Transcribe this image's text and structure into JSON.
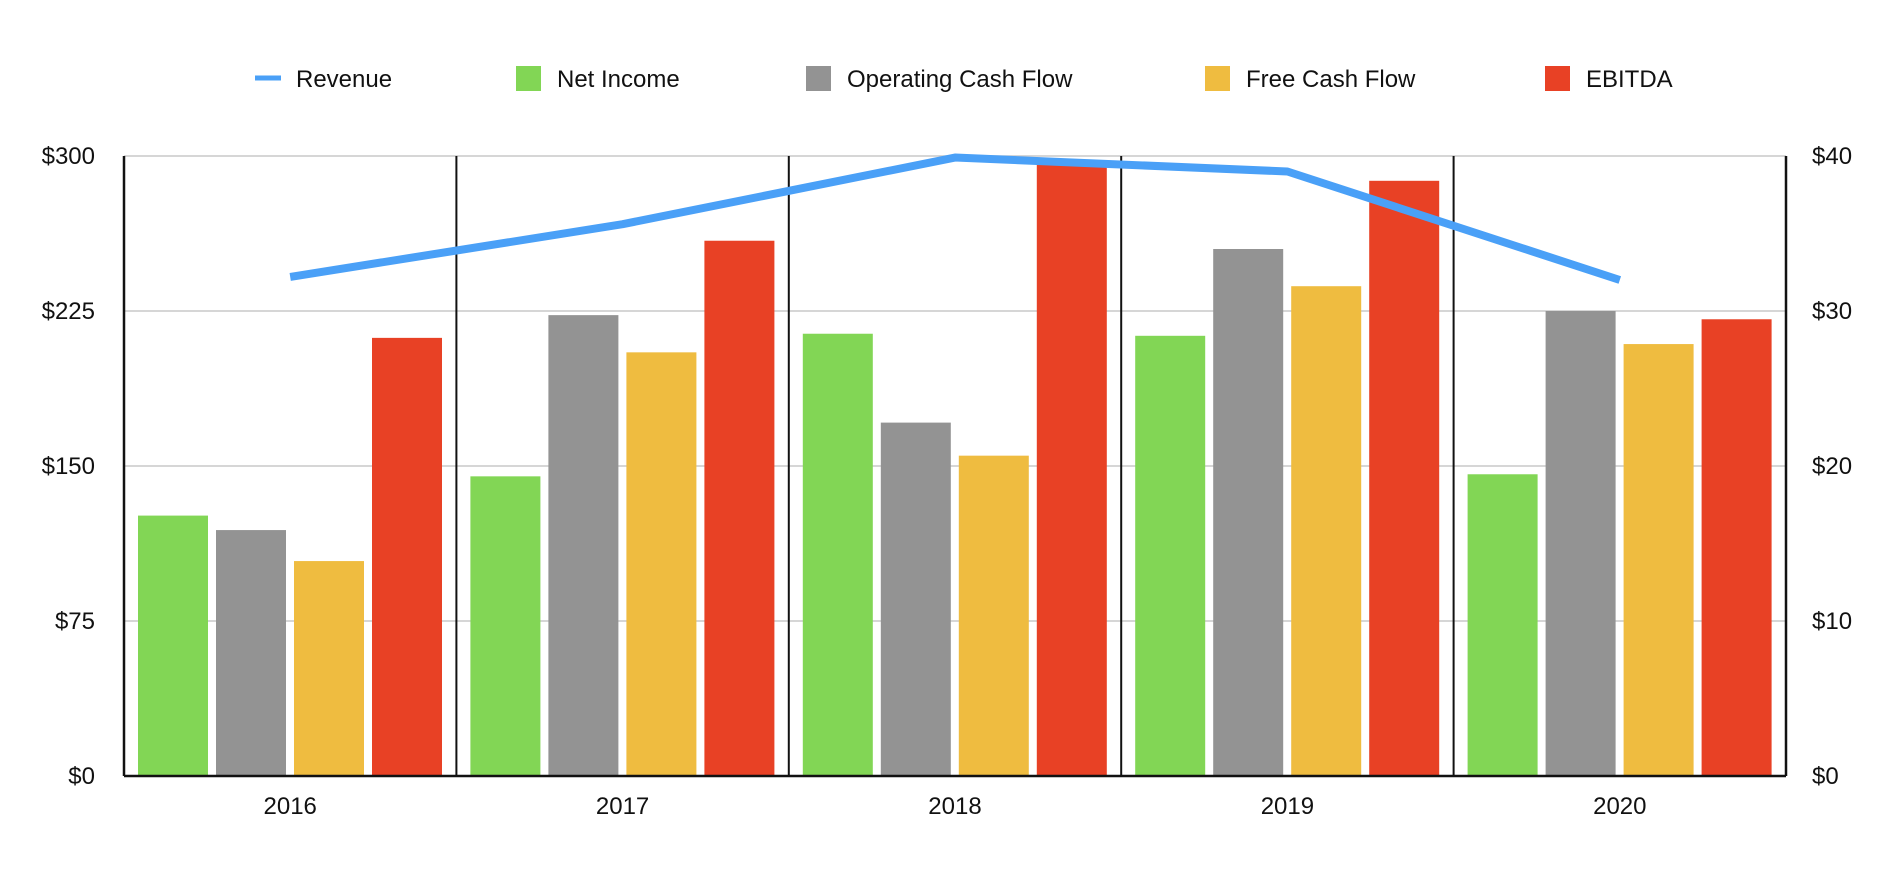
{
  "chart_data": {
    "type": "bar",
    "categories": [
      "2016",
      "2017",
      "2018",
      "2019",
      "2020"
    ],
    "series": [
      {
        "name": "Net Income",
        "kind": "bar",
        "axis": "left",
        "color": "#82d655",
        "values": [
          126,
          145,
          214,
          213,
          146
        ]
      },
      {
        "name": "Operating Cash Flow",
        "kind": "bar",
        "axis": "left",
        "color": "#939393",
        "values": [
          119,
          223,
          171,
          255,
          225
        ]
      },
      {
        "name": "Free Cash Flow",
        "kind": "bar",
        "axis": "left",
        "color": "#efbc40",
        "values": [
          104,
          205,
          155,
          237,
          209
        ]
      },
      {
        "name": "EBITDA",
        "kind": "bar",
        "axis": "left",
        "color": "#e84125",
        "values": [
          212,
          259,
          296,
          288,
          221
        ]
      },
      {
        "name": "Revenue",
        "kind": "line",
        "axis": "right",
        "color": "#4aa0f7",
        "values": [
          32.2,
          35.6,
          39.9,
          39.0,
          32.0
        ]
      }
    ],
    "legend": {
      "position": "top",
      "order": [
        "Revenue",
        "Net Income",
        "Operating Cash Flow",
        "Free Cash Flow",
        "EBITDA"
      ]
    },
    "y_left": {
      "ylim": [
        0,
        300
      ],
      "ticks": [
        0,
        75,
        150,
        225,
        300
      ],
      "tick_labels": [
        "$0",
        "$75",
        "$150",
        "$225",
        "$300"
      ]
    },
    "y_right": {
      "ylim": [
        0,
        40
      ],
      "ticks": [
        0,
        10,
        20,
        30,
        40
      ],
      "tick_labels": [
        "$0",
        "$10",
        "$20",
        "$30",
        "$40"
      ]
    },
    "title": "",
    "xlabel": "",
    "ylabel": "",
    "grid": true
  }
}
